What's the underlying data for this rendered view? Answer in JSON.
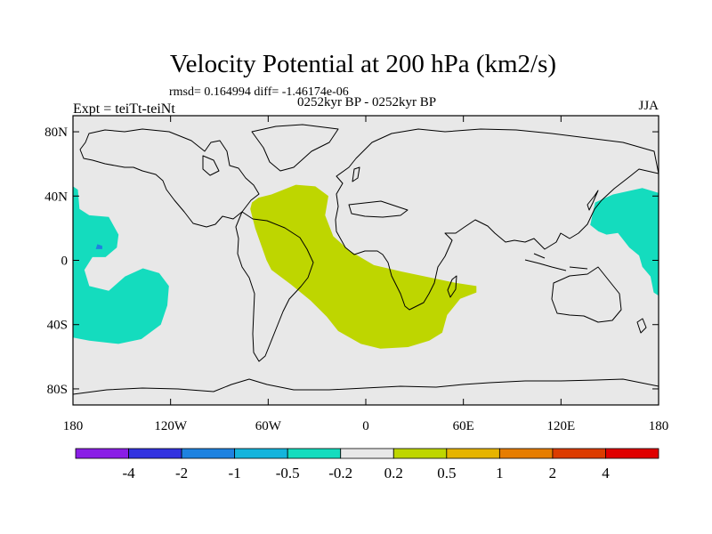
{
  "chart_data": {
    "type": "heatmap",
    "title": "Velocity Potential at 200 hPa (km2/s)",
    "subtitle_stats": "rmsd= 0.164994 diff= -1.46174e-06",
    "subtitle_period": "0252kyr BP - 0252kyr BP",
    "left_label": "Expt = teiTt-teiNt",
    "right_label": "JJA",
    "xlabel": "",
    "ylabel": "",
    "xlim": [
      -180,
      180
    ],
    "ylim": [
      -90,
      90
    ],
    "x_ticks": [
      {
        "value": -180,
        "label": "180"
      },
      {
        "value": -120,
        "label": "120W"
      },
      {
        "value": -60,
        "label": "60W"
      },
      {
        "value": 0,
        "label": "0"
      },
      {
        "value": 60,
        "label": "60E"
      },
      {
        "value": 120,
        "label": "120E"
      },
      {
        "value": 180,
        "label": "180"
      }
    ],
    "y_ticks": [
      {
        "value": 80,
        "label": "80N"
      },
      {
        "value": 40,
        "label": "40N"
      },
      {
        "value": 0,
        "label": "0"
      },
      {
        "value": -40,
        "label": "40S"
      },
      {
        "value": -80,
        "label": "80S"
      }
    ],
    "background_color": "#e8e8e8",
    "contour_levels": [
      -4,
      -2,
      -1,
      -0.5,
      -0.2,
      0.2,
      0.5,
      1,
      2,
      4
    ],
    "colorbar_colors": [
      "#8a1ee6",
      "#3232e0",
      "#1e82e0",
      "#14b4dc",
      "#14dcbe",
      "#e8e8e8",
      "#bed600",
      "#e6b400",
      "#e67d00",
      "#dc3c00",
      "#e00000"
    ],
    "regions": [
      {
        "name": "negative-anomaly-central-pacific",
        "level": "-0.5 to -0.2",
        "color": "#14dcbe",
        "points": [
          [
            -180,
            46
          ],
          [
            -177,
            44
          ],
          [
            -176,
            32
          ],
          [
            -170,
            28
          ],
          [
            -158,
            27
          ],
          [
            -152,
            16
          ],
          [
            -153,
            8
          ],
          [
            -160,
            2
          ],
          [
            -168,
            2
          ],
          [
            -173,
            -6
          ],
          [
            -170,
            -16
          ],
          [
            -158,
            -19
          ],
          [
            -148,
            -10
          ],
          [
            -137,
            -5
          ],
          [
            -127,
            -8
          ],
          [
            -121,
            -16
          ],
          [
            -122,
            -28
          ],
          [
            -126,
            -40
          ],
          [
            -138,
            -49
          ],
          [
            -152,
            -52
          ],
          [
            -170,
            -50
          ],
          [
            -180,
            -48
          ]
        ]
      },
      {
        "name": "negative-anomaly-dip",
        "level": "-1 to -0.5",
        "color": "#1e82e0",
        "points": [
          [
            -165,
            10
          ],
          [
            -162,
            9
          ],
          [
            -162,
            7
          ],
          [
            -166,
            7
          ]
        ]
      },
      {
        "name": "negative-anomaly-west-pacific",
        "level": "-0.5 to -0.2",
        "color": "#14dcbe",
        "points": [
          [
            180,
            42
          ],
          [
            170,
            45
          ],
          [
            152,
            41
          ],
          [
            141,
            36
          ],
          [
            138,
            22
          ],
          [
            143,
            18
          ],
          [
            148,
            16
          ],
          [
            155,
            17
          ],
          [
            162,
            8
          ],
          [
            168,
            3
          ],
          [
            170,
            -4
          ],
          [
            175,
            -10
          ],
          [
            177,
            -20
          ],
          [
            180,
            -22
          ]
        ]
      },
      {
        "name": "positive-anomaly-atlantic-africa",
        "level": "0.2 to 0.5",
        "color": "#bed600",
        "points": [
          [
            -70,
            36
          ],
          [
            -66,
            39
          ],
          [
            -58,
            41
          ],
          [
            -43,
            47
          ],
          [
            -31,
            46
          ],
          [
            -23,
            40
          ],
          [
            -25,
            28
          ],
          [
            -20,
            15
          ],
          [
            -10,
            6
          ],
          [
            5,
            -3
          ],
          [
            22,
            -7
          ],
          [
            41,
            -11
          ],
          [
            55,
            -14
          ],
          [
            68,
            -16
          ],
          [
            68,
            -20
          ],
          [
            58,
            -24
          ],
          [
            50,
            -34
          ],
          [
            47,
            -45
          ],
          [
            39,
            -50
          ],
          [
            26,
            -54
          ],
          [
            9,
            -55
          ],
          [
            -3,
            -52
          ],
          [
            -17,
            -44
          ],
          [
            -24,
            -35
          ],
          [
            -34,
            -25
          ],
          [
            -46,
            -15
          ],
          [
            -58,
            -6
          ],
          [
            -61,
            0
          ],
          [
            -68,
            20
          ],
          [
            -71,
            32
          ]
        ]
      }
    ],
    "colorbar_labels": [
      "-4",
      "-2",
      "-1",
      "-0.5",
      "-0.2",
      "0.2",
      "0.5",
      "1",
      "2",
      "4"
    ]
  }
}
